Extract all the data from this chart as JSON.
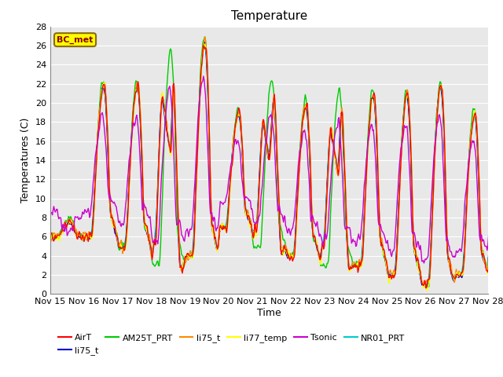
{
  "title": "Temperature",
  "ylabel": "Temperatures (C)",
  "xlabel": "Time",
  "ylim": [
    0,
    28
  ],
  "yticks": [
    0,
    2,
    4,
    6,
    8,
    10,
    12,
    14,
    16,
    18,
    20,
    22,
    24,
    26,
    28
  ],
  "xtick_labels": [
    "Nov 15",
    "Nov 16",
    "Nov 17",
    "Nov 18",
    "Nov 19",
    "Nov 20",
    "Nov 21",
    "Nov 22",
    "Nov 23",
    "Nov 24",
    "Nov 25",
    "Nov 26",
    "Nov 27",
    "Nov 28"
  ],
  "annotation_text": "BC_met",
  "annotation_bg": "#FFFF00",
  "annotation_border": "#8B6914",
  "series": [
    {
      "name": "AirT",
      "color": "#FF0000",
      "lw": 1.0
    },
    {
      "name": "li75_t",
      "color": "#0000CC",
      "lw": 1.0
    },
    {
      "name": "AM25T_PRT",
      "color": "#00CC00",
      "lw": 1.0
    },
    {
      "name": "li75_t",
      "color": "#FF8800",
      "lw": 1.0
    },
    {
      "name": "li77_temp",
      "color": "#FFFF00",
      "lw": 1.0
    },
    {
      "name": "Tsonic",
      "color": "#CC00CC",
      "lw": 1.0
    },
    {
      "name": "NR01_PRT",
      "color": "#00CCCC",
      "lw": 1.0
    }
  ],
  "plot_bg": "#E8E8E8",
  "fig_bg": "#FFFFFF",
  "grid_color": "#FFFFFF",
  "title_fontsize": 11,
  "axis_fontsize": 9,
  "tick_fontsize": 8
}
